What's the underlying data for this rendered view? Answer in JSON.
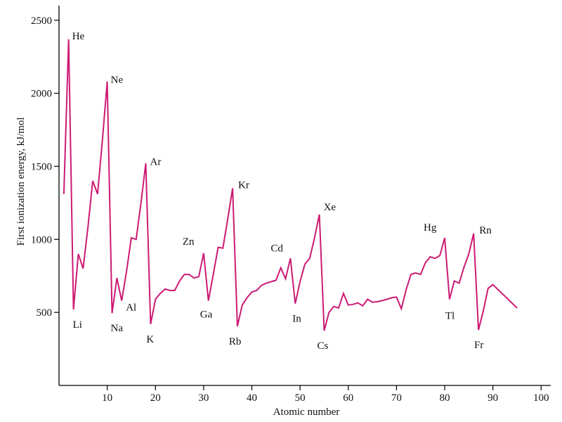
{
  "chart_data": {
    "type": "line",
    "title": "",
    "xlabel": "Atomic number",
    "ylabel": "First ionization energy, kJ/mol",
    "xlim": [
      0,
      102
    ],
    "ylim": [
      0,
      2600
    ],
    "xticks": [
      10,
      20,
      30,
      40,
      50,
      60,
      70,
      80,
      90,
      100
    ],
    "yticks": [
      500,
      1000,
      1500,
      2000,
      2500
    ],
    "grid": false,
    "line_color": "#cc1a73",
    "series": [
      {
        "x": [
          1,
          2,
          3,
          4,
          5,
          6,
          7,
          8,
          9,
          10,
          11,
          12,
          13,
          14,
          15,
          16,
          17,
          18,
          19,
          20,
          21,
          22,
          23,
          24,
          25,
          26,
          27,
          28,
          29,
          30,
          31,
          32,
          33,
          34,
          35,
          36,
          37,
          38,
          39,
          40,
          41,
          42,
          43,
          44,
          45,
          46,
          47,
          48,
          49,
          50,
          51,
          52,
          53,
          54,
          55,
          56,
          57,
          58,
          59,
          60,
          61,
          62,
          63,
          64,
          65,
          66,
          67,
          68,
          69,
          70,
          71,
          72,
          73,
          74,
          75,
          76,
          77,
          78,
          79,
          80,
          81,
          82,
          83,
          84,
          85,
          86,
          87,
          88,
          89,
          90,
          95
        ],
        "y": [
          1310,
          2370,
          520,
          900,
          800,
          1085,
          1400,
          1310,
          1680,
          2080,
          495,
          735,
          580,
          780,
          1010,
          1000,
          1250,
          1520,
          420,
          590,
          630,
          660,
          650,
          650,
          715,
          760,
          760,
          735,
          745,
          905,
          580,
          760,
          945,
          940,
          1140,
          1350,
          405,
          550,
          600,
          640,
          650,
          685,
          700,
          710,
          720,
          805,
          730,
          870,
          560,
          710,
          830,
          870,
          1010,
          1170,
          375,
          500,
          540,
          530,
          630,
          550,
          555,
          565,
          545,
          590,
          570,
          573,
          580,
          590,
          600,
          605,
          525,
          655,
          760,
          770,
          760,
          840,
          880,
          870,
          890,
          1010,
          590,
          715,
          700,
          810,
          900,
          1040,
          380,
          510,
          665,
          690,
          530
        ]
      }
    ],
    "annotations": [
      {
        "text": "He",
        "x": 2
      },
      {
        "text": "Li",
        "x": 3
      },
      {
        "text": "Ne",
        "x": 10
      },
      {
        "text": "Na",
        "x": 11
      },
      {
        "text": "Al",
        "x": 13
      },
      {
        "text": "Ar",
        "x": 18
      },
      {
        "text": "K",
        "x": 19
      },
      {
        "text": "Zn",
        "x": 30
      },
      {
        "text": "Ga",
        "x": 31
      },
      {
        "text": "Kr",
        "x": 36
      },
      {
        "text": "Rb",
        "x": 37
      },
      {
        "text": "Cd",
        "x": 48
      },
      {
        "text": "In",
        "x": 49
      },
      {
        "text": "Xe",
        "x": 54
      },
      {
        "text": "Cs",
        "x": 55
      },
      {
        "text": "Hg",
        "x": 80
      },
      {
        "text": "Tl",
        "x": 81
      },
      {
        "text": "Rn",
        "x": 86
      },
      {
        "text": "Fr",
        "x": 87
      }
    ]
  }
}
